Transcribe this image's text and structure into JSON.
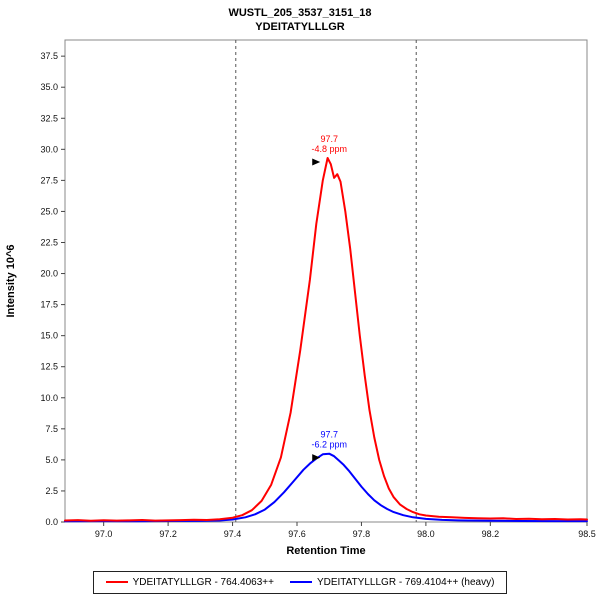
{
  "title": {
    "line1": "WUSTL_205_3537_3151_18",
    "line2": "YDEITATYLLLGR"
  },
  "chart_data": {
    "type": "line",
    "title": "WUSTL_205_3537_3151_18",
    "subtitle": "YDEITATYLLLGR",
    "xlabel": "Retention Time",
    "ylabel": "Intensity 10^6",
    "xlim": [
      96.88,
      98.5
    ],
    "ylim": [
      0,
      38.8
    ],
    "grid": false,
    "x_ticks": [
      {
        "v": 97.0,
        "label": "97.0"
      },
      {
        "v": 97.2,
        "label": "97.2"
      },
      {
        "v": 97.4,
        "label": "97.4"
      },
      {
        "v": 97.6,
        "label": "97.6"
      },
      {
        "v": 97.8,
        "label": "97.8"
      },
      {
        "v": 98.0,
        "label": "98.0"
      },
      {
        "v": 98.2,
        "label": "98.2"
      },
      {
        "v": 98.5,
        "label": "98.5"
      }
    ],
    "y_ticks": [
      {
        "v": 0.0,
        "label": "0.0"
      },
      {
        "v": 2.5,
        "label": "2.5"
      },
      {
        "v": 5.0,
        "label": "5.0"
      },
      {
        "v": 7.5,
        "label": "7.5"
      },
      {
        "v": 10.0,
        "label": "10.0"
      },
      {
        "v": 12.5,
        "label": "12.5"
      },
      {
        "v": 15.0,
        "label": "15.0"
      },
      {
        "v": 17.5,
        "label": "17.5"
      },
      {
        "v": 20.0,
        "label": "20.0"
      },
      {
        "v": 22.5,
        "label": "22.5"
      },
      {
        "v": 25.0,
        "label": "25.0"
      },
      {
        "v": 27.5,
        "label": "27.5"
      },
      {
        "v": 30.0,
        "label": "30.0"
      },
      {
        "v": 32.5,
        "label": "32.5"
      },
      {
        "v": 35.0,
        "label": "35.0"
      },
      {
        "v": 37.5,
        "label": "37.5"
      }
    ],
    "integration_boundaries": [
      97.41,
      97.97
    ],
    "series": [
      {
        "name": "YDEITATYLLLGR - 764.4063++",
        "color": "#ff0000",
        "annotation": {
          "line1": "97.7",
          "line2": "-4.8 ppm",
          "x": 97.7,
          "y": 29.3
        },
        "points": [
          [
            96.88,
            0.12
          ],
          [
            96.92,
            0.15
          ],
          [
            96.96,
            0.1
          ],
          [
            97.0,
            0.14
          ],
          [
            97.04,
            0.11
          ],
          [
            97.08,
            0.13
          ],
          [
            97.12,
            0.16
          ],
          [
            97.16,
            0.11
          ],
          [
            97.2,
            0.13
          ],
          [
            97.24,
            0.15
          ],
          [
            97.28,
            0.18
          ],
          [
            97.32,
            0.16
          ],
          [
            97.36,
            0.22
          ],
          [
            97.4,
            0.35
          ],
          [
            97.43,
            0.55
          ],
          [
            97.46,
            0.95
          ],
          [
            97.49,
            1.7
          ],
          [
            97.52,
            3.0
          ],
          [
            97.55,
            5.2
          ],
          [
            97.58,
            8.8
          ],
          [
            97.61,
            13.8
          ],
          [
            97.64,
            19.5
          ],
          [
            97.66,
            24.0
          ],
          [
            97.68,
            27.5
          ],
          [
            97.695,
            29.3
          ],
          [
            97.705,
            28.8
          ],
          [
            97.715,
            27.7
          ],
          [
            97.725,
            28.0
          ],
          [
            97.735,
            27.4
          ],
          [
            97.75,
            25.0
          ],
          [
            97.765,
            22.0
          ],
          [
            97.78,
            18.5
          ],
          [
            97.795,
            15.0
          ],
          [
            97.81,
            11.8
          ],
          [
            97.825,
            9.0
          ],
          [
            97.84,
            6.8
          ],
          [
            97.855,
            5.0
          ],
          [
            97.87,
            3.7
          ],
          [
            97.885,
            2.7
          ],
          [
            97.9,
            2.0
          ],
          [
            97.92,
            1.4
          ],
          [
            97.94,
            1.05
          ],
          [
            97.96,
            0.8
          ],
          [
            97.98,
            0.62
          ],
          [
            98.0,
            0.52
          ],
          [
            98.04,
            0.42
          ],
          [
            98.08,
            0.38
          ],
          [
            98.12,
            0.33
          ],
          [
            98.16,
            0.3
          ],
          [
            98.2,
            0.28
          ],
          [
            98.24,
            0.3
          ],
          [
            98.28,
            0.24
          ],
          [
            98.32,
            0.26
          ],
          [
            98.36,
            0.22
          ],
          [
            98.4,
            0.24
          ],
          [
            98.44,
            0.2
          ],
          [
            98.48,
            0.22
          ],
          [
            98.5,
            0.2
          ]
        ]
      },
      {
        "name": "YDEITATYLLLGR - 769.4104++ (heavy)",
        "color": "#0000ff",
        "annotation": {
          "line1": "97.7",
          "line2": "-6.2 ppm",
          "x": 97.7,
          "y": 5.5
        },
        "points": [
          [
            96.88,
            0.06
          ],
          [
            97.0,
            0.07
          ],
          [
            97.1,
            0.06
          ],
          [
            97.2,
            0.08
          ],
          [
            97.3,
            0.09
          ],
          [
            97.36,
            0.12
          ],
          [
            97.4,
            0.2
          ],
          [
            97.44,
            0.38
          ],
          [
            97.47,
            0.62
          ],
          [
            97.5,
            1.0
          ],
          [
            97.53,
            1.6
          ],
          [
            97.56,
            2.4
          ],
          [
            97.59,
            3.3
          ],
          [
            97.62,
            4.2
          ],
          [
            97.64,
            4.7
          ],
          [
            97.66,
            5.1
          ],
          [
            97.68,
            5.45
          ],
          [
            97.7,
            5.5
          ],
          [
            97.715,
            5.3
          ],
          [
            97.73,
            4.95
          ],
          [
            97.745,
            4.6
          ],
          [
            97.76,
            4.15
          ],
          [
            97.78,
            3.5
          ],
          [
            97.8,
            2.85
          ],
          [
            97.82,
            2.25
          ],
          [
            97.84,
            1.75
          ],
          [
            97.86,
            1.35
          ],
          [
            97.88,
            1.05
          ],
          [
            97.9,
            0.8
          ],
          [
            97.93,
            0.55
          ],
          [
            97.96,
            0.38
          ],
          [
            98.0,
            0.25
          ],
          [
            98.05,
            0.17
          ],
          [
            98.1,
            0.13
          ],
          [
            98.2,
            0.1
          ],
          [
            98.3,
            0.08
          ],
          [
            98.4,
            0.07
          ],
          [
            98.5,
            0.07
          ]
        ]
      }
    ]
  },
  "legend": {
    "items": [
      {
        "label": "YDEITATYLLLGR - 764.4063++",
        "color": "#ff0000"
      },
      {
        "label": "YDEITATYLLLGR - 769.4104++ (heavy)",
        "color": "#0000ff"
      }
    ]
  }
}
